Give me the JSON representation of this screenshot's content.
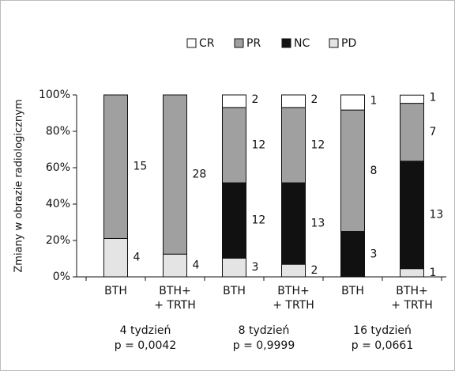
{
  "chart_data": {
    "type": "stacked_bar",
    "y_label": "Zmiany w obrazie radiologicznym",
    "categories": [
      [
        "BTH"
      ],
      [
        "BTH+",
        "+ TRTH"
      ],
      [
        "BTH"
      ],
      [
        "BTH+",
        "+ TRTH"
      ],
      [
        "BTH"
      ],
      [
        "BTH+",
        "+ TRTH"
      ]
    ],
    "groups": [
      [
        "4 tydzień",
        "p = 0,0042"
      ],
      [
        "8 tydzień",
        "p = 0,9999"
      ],
      [
        "16 tydzień",
        "p = 0,0661"
      ]
    ],
    "series": [
      {
        "name": "CR",
        "color": "#ffffff",
        "values": [
          null,
          null,
          6.9,
          6.9,
          8.3,
          4.5
        ],
        "counts": [
          null,
          null,
          2,
          2,
          1,
          1
        ]
      },
      {
        "name": "PR",
        "color": "#a0a0a0",
        "values": [
          78.9,
          87.5,
          41.4,
          41.4,
          66.7,
          31.8
        ],
        "counts": [
          15,
          28,
          12,
          12,
          8,
          7
        ]
      },
      {
        "name": "NC",
        "color": "#111111",
        "values": [
          null,
          null,
          41.4,
          44.8,
          25.0,
          59.1
        ],
        "counts": [
          null,
          null,
          12,
          13,
          3,
          13
        ]
      },
      {
        "name": "PD",
        "color": "#e4e4e4",
        "values": [
          21.1,
          12.5,
          10.3,
          6.9,
          null,
          4.5
        ],
        "counts": [
          4,
          4,
          3,
          2,
          null,
          1
        ]
      }
    ],
    "ylim": [
      0,
      100
    ],
    "yticks": [
      {
        "value": 0,
        "label": "0%"
      },
      {
        "value": 20,
        "label": "20%"
      },
      {
        "value": 40,
        "label": "40%"
      },
      {
        "value": 60,
        "label": "60%"
      },
      {
        "value": 80,
        "label": "80%"
      },
      {
        "value": 100,
        "label": "100%"
      }
    ]
  }
}
